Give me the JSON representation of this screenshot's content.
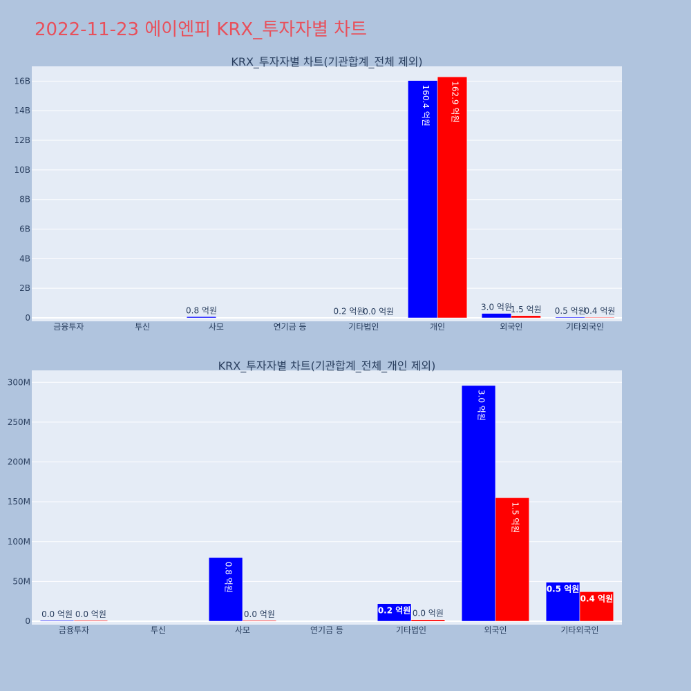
{
  "title": "2022-11-23 에이엔피 KRX_투자자별 차트",
  "colors": {
    "buy": "#0000ff",
    "sell": "#ff0000",
    "plot_bg": "#e5ecf6",
    "page_bg": "#b0c4de",
    "title": "#e8505b"
  },
  "chart_data": [
    {
      "type": "bar",
      "title": "KRX_투자자별 차트(기관합계_전체 제외)",
      "categories": [
        "금융투자",
        "투신",
        "사모",
        "연기금 등",
        "기타법인",
        "개인",
        "외국인",
        "기타외국인"
      ],
      "ylim": [
        0,
        17000000000
      ],
      "yticks": [
        0,
        2000000000,
        4000000000,
        6000000000,
        8000000000,
        10000000000,
        12000000000,
        14000000000,
        16000000000
      ],
      "ytick_labels": [
        "0",
        "2B",
        "4B",
        "6B",
        "8B",
        "10B",
        "12B",
        "14B",
        "16B"
      ],
      "grid": true,
      "series": [
        {
          "values": [
            0,
            0,
            80000000,
            0,
            20000000,
            16040000000,
            300000000,
            50000000
          ],
          "labels": [
            "",
            "",
            "0.8 억원",
            "",
            "0.2 억원",
            "160.4 억원",
            "3.0 억원",
            "0.5 억원"
          ]
        },
        {
          "values": [
            0,
            0,
            0,
            0,
            0,
            16290000000,
            150000000,
            40000000
          ],
          "labels": [
            "",
            "",
            "",
            "",
            "0.0 억원",
            "162.9 억원",
            "1.5 억원",
            "0.4 억원"
          ]
        }
      ]
    },
    {
      "type": "bar",
      "title": "KRX_투자자별 차트(기관합계_전체_개인 제외)",
      "categories": [
        "금융투자",
        "투신",
        "사모",
        "연기금 등",
        "기타법인",
        "외국인",
        "기타외국인"
      ],
      "ylim": [
        0,
        315000000
      ],
      "yticks": [
        0,
        50000000,
        100000000,
        150000000,
        200000000,
        250000000,
        300000000
      ],
      "ytick_labels": [
        "0",
        "50M",
        "100M",
        "150M",
        "200M",
        "250M",
        "300M"
      ],
      "grid": true,
      "series": [
        {
          "values": [
            1000000,
            0,
            80000000,
            0,
            22000000,
            296000000,
            49000000
          ],
          "labels": [
            "0.0 억원",
            "",
            "0.8 억원",
            "",
            "0.2 억원",
            "3.0 억원",
            "0.5 억원"
          ]
        },
        {
          "values": [
            1000000,
            0,
            1000000,
            0,
            2000000,
            155000000,
            37000000
          ],
          "labels": [
            "0.0 억원",
            "",
            "0.0 억원",
            "",
            "0.0 억원",
            "1.5 억원",
            "0.4 억원"
          ]
        }
      ]
    }
  ]
}
